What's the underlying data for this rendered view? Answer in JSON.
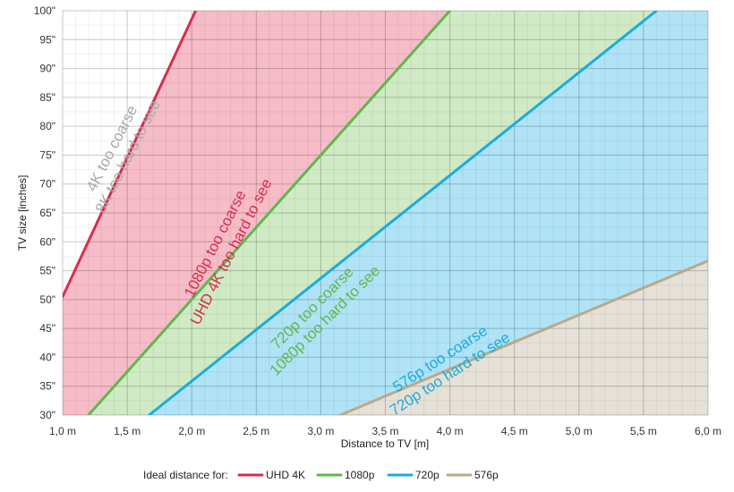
{
  "chart_data": {
    "type": "area",
    "xlabel": "Distance to TV [m]",
    "ylabel": "TV size [inches]",
    "xlim": [
      1.0,
      6.0
    ],
    "ylim": [
      30,
      100
    ],
    "x_ticks": [
      1.0,
      1.5,
      2.0,
      2.5,
      3.0,
      3.5,
      4.0,
      4.5,
      5.0,
      5.5,
      6.0
    ],
    "x_tick_labels": [
      "1,0 m",
      "1,5 m",
      "2,0 m",
      "2,5 m",
      "3,0 m",
      "3,5 m",
      "4,0 m",
      "4,5 m",
      "5,0 m",
      "5,5 m",
      "6,0 m"
    ],
    "y_ticks": [
      30,
      35,
      40,
      45,
      50,
      55,
      60,
      65,
      70,
      75,
      80,
      85,
      90,
      95,
      100
    ],
    "y_tick_labels": [
      "30\"",
      "35\"",
      "40\"",
      "45\"",
      "50\"",
      "55\"",
      "60\"",
      "65\"",
      "70\"",
      "75\"",
      "80\"",
      "85\"",
      "90\"",
      "95\"",
      "100\""
    ],
    "grid": true,
    "legend_position": "bottom",
    "legend_title": "Ideal distance for:",
    "series": [
      {
        "name": "UHD 4K",
        "color": "#d72e4e",
        "fill": "#f6bcc7",
        "x": [
          1.0,
          2.03
        ],
        "y": [
          50.5,
          100
        ]
      },
      {
        "name": "1080p",
        "color": "#5fb84a",
        "fill": "#cfeac5",
        "x": [
          1.2,
          4.0
        ],
        "y": [
          30,
          100
        ]
      },
      {
        "name": "720p",
        "color": "#1aacde",
        "fill": "#b0e3f6",
        "x": [
          1.67,
          5.6
        ],
        "y": [
          30,
          100
        ]
      },
      {
        "name": "576p",
        "color": "#bba987",
        "fill": "#e6e1d6",
        "x": [
          3.15,
          6.0
        ],
        "y": [
          30,
          56.7
        ]
      }
    ],
    "annotations": [
      {
        "lines": [
          "4K too coarse",
          "8K too hard to see"
        ],
        "color": "#a8a8a8"
      },
      {
        "lines": [
          "1080p too coarse",
          "UHD 4K too hard to see"
        ],
        "color": "#d72e4e"
      },
      {
        "lines": [
          "720p too coarse",
          "1080p too hard to see"
        ],
        "color": "#5fb84a"
      },
      {
        "lines": [
          "576p too coarse",
          "720p too hard to see"
        ],
        "color": "#1aacde"
      }
    ]
  }
}
